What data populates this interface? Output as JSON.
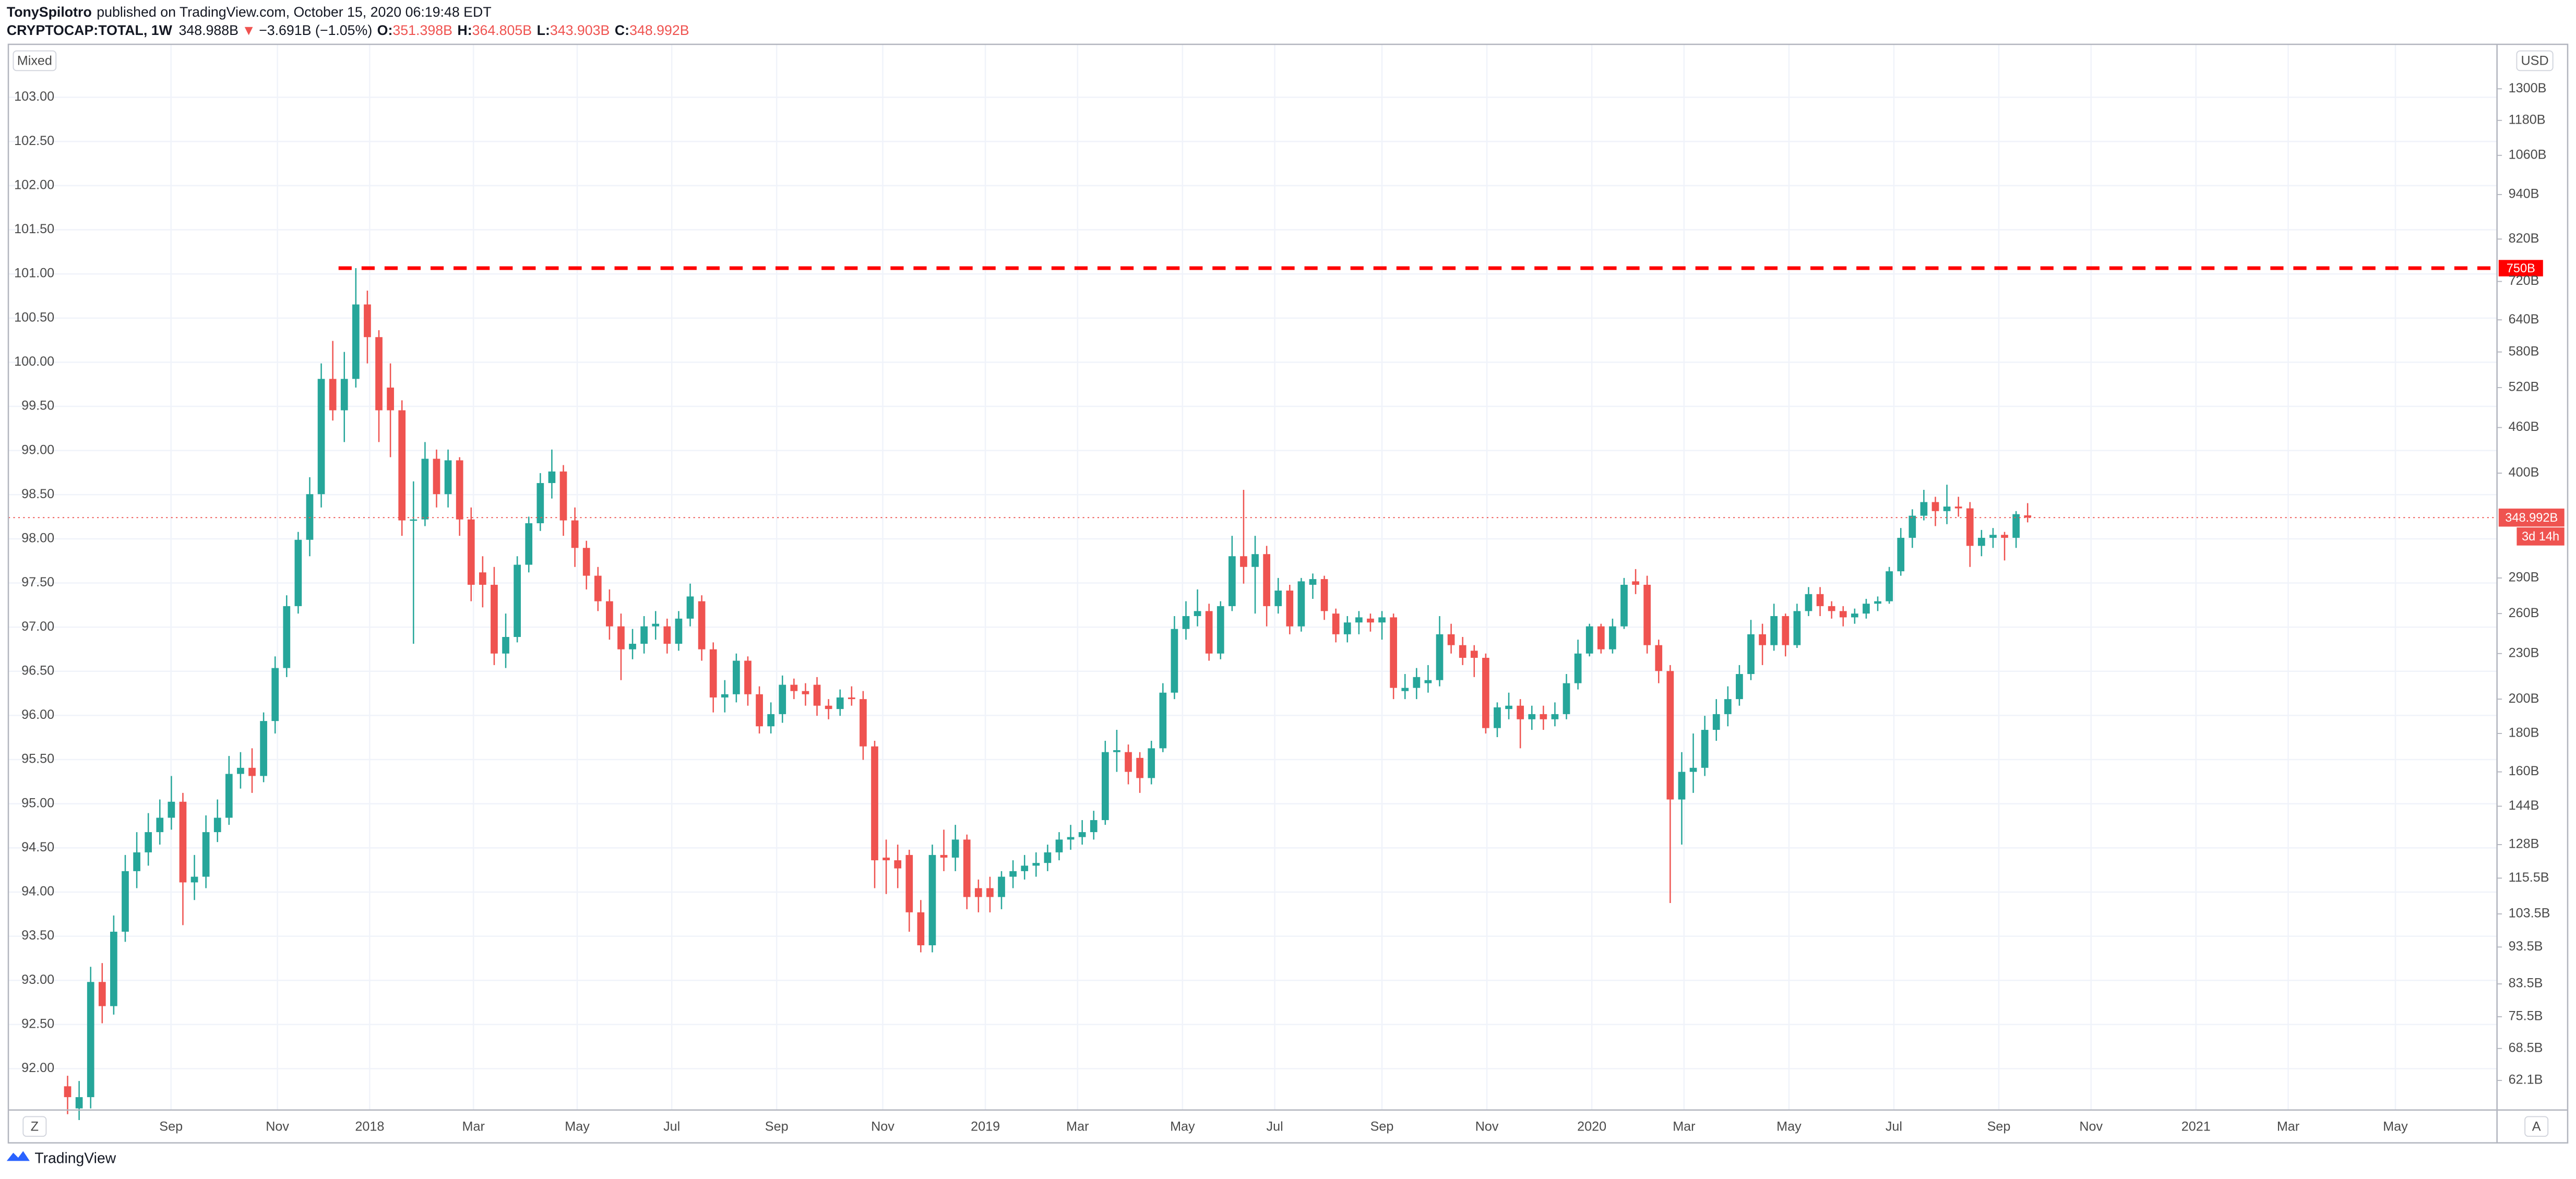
{
  "header": {
    "author": "TonySpilotro",
    "published": "published on TradingView.com, October 15, 2020 06:19:48 EDT",
    "symbol": "CRYPTOCAP:TOTAL, 1W",
    "last": "348.988B",
    "arrow": "▼",
    "change": "−3.691B (−1.05%)",
    "o_label": "O:",
    "o": "351.398B",
    "h_label": "H:",
    "h": "364.805B",
    "l_label": "L:",
    "l": "343.903B",
    "c_label": "C:",
    "c": "348.992B"
  },
  "chart_data": {
    "type": "candlestick",
    "up_color": "#26a69a",
    "down_color": "#ef5350",
    "open": [
      61,
      57,
      59,
      84,
      78,
      98,
      118,
      125,
      133,
      139,
      146,
      114,
      116,
      133,
      139,
      159,
      162,
      158,
      187,
      220,
      266,
      326,
      375,
      534,
      485,
      534,
      671,
      607,
      520,
      485,
      346,
      347,
      418,
      375,
      416,
      347,
      295,
      284,
      230,
      242,
      302,
      343,
      388,
      402,
      346,
      318,
      292,
      270,
      250,
      233,
      237,
      250,
      250,
      237,
      256,
      270,
      233,
      201,
      203,
      225,
      203,
      184,
      191,
      209,
      205,
      209,
      196,
      194,
      201,
      200,
      173,
      123,
      122,
      124,
      104,
      94,
      124,
      123,
      130,
      112,
      112,
      109,
      116,
      118,
      120,
      121,
      125,
      130,
      131,
      133,
      138,
      170,
      170,
      167,
      157,
      172,
      204,
      248,
      258,
      262,
      230,
      266,
      310,
      300,
      312,
      266,
      279,
      250,
      284,
      289,
      260,
      244,
      253,
      256,
      253,
      257,
      205,
      207,
      210,
      212,
      244,
      236,
      232,
      227,
      183,
      194,
      196,
      188,
      191,
      188,
      191,
      210,
      230,
      250,
      233,
      250,
      287,
      284,
      236,
      218,
      147,
      160,
      162,
      182,
      191,
      200,
      216,
      244,
      236,
      258,
      236,
      262,
      276,
      266,
      262,
      257,
      260,
      268,
      270,
      296,
      328,
      351,
      366,
      356,
      361,
      359,
      320,
      328,
      331,
      328,
      351.398
    ],
    "high": [
      63,
      62,
      88,
      89,
      103,
      124,
      133,
      141,
      147,
      158,
      150,
      124,
      140,
      147,
      168,
      170,
      172,
      192,
      228,
      275,
      334,
      395,
      560,
      600,
      580,
      750,
      700,
      620,
      560,
      500,
      390,
      440,
      430,
      430,
      420,
      360,
      310,
      300,
      260,
      310,
      350,
      400,
      430,
      410,
      360,
      325,
      300,
      280,
      260,
      248,
      258,
      262,
      256,
      262,
      285,
      275,
      238,
      212,
      230,
      228,
      208,
      198,
      215,
      213,
      210,
      214,
      200,
      206,
      208,
      205,
      176,
      130,
      128,
      126,
      108,
      128,
      134,
      136,
      132,
      115,
      116,
      118,
      122,
      124,
      125,
      128,
      133,
      136,
      138,
      142,
      176,
      182,
      174,
      170,
      176,
      210,
      258,
      270,
      280,
      268,
      270,
      330,
      380,
      330,
      320,
      290,
      284,
      290,
      294,
      292,
      264,
      258,
      262,
      260,
      262,
      260,
      216,
      220,
      222,
      258,
      252,
      242,
      236,
      230,
      198,
      204,
      200,
      196,
      196,
      198,
      216,
      240,
      252,
      252,
      256,
      290,
      298,
      292,
      240,
      222,
      170,
      180,
      190,
      200,
      208,
      222,
      255,
      252,
      268,
      260,
      268,
      282,
      282,
      270,
      266,
      264,
      272,
      274,
      300,
      338,
      358,
      380,
      372,
      386,
      372,
      366,
      336,
      338,
      334,
      356,
      364.805
    ],
    "low": [
      56,
      55,
      57,
      74,
      76,
      95,
      112,
      120,
      128,
      134,
      100,
      108,
      112,
      129,
      136,
      152,
      150,
      155,
      180,
      214,
      260,
      310,
      360,
      470,
      440,
      520,
      560,
      440,
      420,
      330,
      237,
      340,
      360,
      360,
      330,
      270,
      265,
      222,
      220,
      238,
      295,
      335,
      370,
      330,
      300,
      280,
      262,
      240,
      212,
      226,
      230,
      240,
      230,
      232,
      250,
      225,
      192,
      192,
      198,
      196,
      180,
      180,
      186,
      200,
      196,
      190,
      188,
      190,
      196,
      166,
      112,
      110,
      112,
      98,
      92,
      92,
      118,
      118,
      105,
      104,
      104,
      105,
      112,
      115,
      116,
      118,
      122,
      126,
      128,
      130,
      136,
      160,
      154,
      150,
      154,
      170,
      200,
      240,
      250,
      225,
      226,
      262,
      285,
      260,
      250,
      260,
      244,
      246,
      272,
      255,
      238,
      238,
      244,
      246,
      240,
      200,
      200,
      200,
      204,
      208,
      230,
      222,
      214,
      180,
      178,
      188,
      172,
      182,
      182,
      184,
      188,
      206,
      228,
      230,
      230,
      248,
      276,
      230,
      210,
      107,
      128,
      150,
      158,
      176,
      184,
      196,
      212,
      222,
      232,
      228,
      234,
      258,
      258,
      256,
      250,
      252,
      256,
      262,
      268,
      292,
      318,
      346,
      340,
      342,
      350,
      300,
      310,
      318,
      306,
      318,
      343.903
    ],
    "close": [
      59,
      59,
      84,
      78,
      98,
      118,
      125,
      133,
      139,
      146,
      114,
      116,
      133,
      139,
      159,
      162,
      158,
      187,
      220,
      266,
      326,
      375,
      534,
      485,
      534,
      671,
      607,
      485,
      485,
      346,
      347,
      418,
      375,
      416,
      347,
      284,
      284,
      230,
      242,
      302,
      343,
      388,
      402,
      346,
      318,
      292,
      270,
      250,
      233,
      237,
      250,
      252,
      237,
      256,
      274,
      233,
      201,
      203,
      225,
      203,
      184,
      191,
      209,
      205,
      203,
      196,
      194,
      201,
      200,
      173,
      122,
      122,
      119,
      104,
      94,
      124,
      123,
      130,
      109,
      109,
      109,
      116,
      118,
      120,
      121,
      125,
      130,
      131,
      133,
      138,
      170,
      171,
      160,
      157,
      172,
      204,
      248,
      258,
      262,
      230,
      266,
      310,
      300,
      312,
      266,
      279,
      250,
      287,
      289,
      262,
      244,
      253,
      257,
      253,
      257,
      207,
      207,
      214,
      212,
      244,
      236,
      227,
      227,
      183,
      195,
      196,
      188,
      191,
      188,
      191,
      210,
      230,
      250,
      233,
      250,
      284,
      284,
      236,
      218,
      147,
      160,
      162,
      182,
      191,
      200,
      216,
      244,
      236,
      258,
      236,
      262,
      276,
      266,
      262,
      257,
      260,
      268,
      270,
      296,
      328,
      351,
      366,
      356,
      361,
      359,
      320,
      328,
      331,
      328,
      352.679,
      348.992
    ],
    "ylim": [
      57,
      1490
    ],
    "log_scale": true,
    "yticks": [
      {
        "value": 62.1,
        "label": "62.1B"
      },
      {
        "value": 68.5,
        "label": "68.5B"
      },
      {
        "value": 75.5,
        "label": "75.5B"
      },
      {
        "value": 83.5,
        "label": "83.5B"
      },
      {
        "value": 93.5,
        "label": "93.5B"
      },
      {
        "value": 103.5,
        "label": "103.5B"
      },
      {
        "value": 115.5,
        "label": "115.5B"
      },
      {
        "value": 128,
        "label": "128B"
      },
      {
        "value": 144,
        "label": "144B"
      },
      {
        "value": 160,
        "label": "160B"
      },
      {
        "value": 180,
        "label": "180B"
      },
      {
        "value": 200,
        "label": "200B"
      },
      {
        "value": 230,
        "label": "230B"
      },
      {
        "value": 260,
        "label": "260B"
      },
      {
        "value": 290,
        "label": "290B"
      },
      {
        "value": 400,
        "label": "400B"
      },
      {
        "value": 460,
        "label": "460B"
      },
      {
        "value": 520,
        "label": "520B"
      },
      {
        "value": 580,
        "label": "580B"
      },
      {
        "value": 640,
        "label": "640B"
      },
      {
        "value": 720,
        "label": "720B"
      },
      {
        "value": 820,
        "label": "820B"
      },
      {
        "value": 940,
        "label": "940B"
      },
      {
        "value": 1060,
        "label": "1060B"
      },
      {
        "value": 1180,
        "label": "1180B"
      },
      {
        "value": 1300,
        "label": "1300B"
      }
    ],
    "y_label": "USD",
    "y2lim": [
      91.55,
      103.6
    ],
    "y2ticks": [
      {
        "value": 92,
        "label": "92.00"
      },
      {
        "value": 92.5,
        "label": "92.50"
      },
      {
        "value": 93,
        "label": "93.00"
      },
      {
        "value": 93.5,
        "label": "93.50"
      },
      {
        "value": 94,
        "label": "94.00"
      },
      {
        "value": 94.5,
        "label": "94.50"
      },
      {
        "value": 95,
        "label": "95.00"
      },
      {
        "value": 95.5,
        "label": "95.50"
      },
      {
        "value": 96,
        "label": "96.00"
      },
      {
        "value": 96.5,
        "label": "96.50"
      },
      {
        "value": 97,
        "label": "97.00"
      },
      {
        "value": 97.5,
        "label": "97.50"
      },
      {
        "value": 98,
        "label": "98.00"
      },
      {
        "value": 98.5,
        "label": "98.50"
      },
      {
        "value": 99,
        "label": "99.00"
      },
      {
        "value": 99.5,
        "label": "99.50"
      },
      {
        "value": 100,
        "label": "100.00"
      },
      {
        "value": 100.5,
        "label": "100.50"
      },
      {
        "value": 101,
        "label": "101.00"
      },
      {
        "value": 101.5,
        "label": "101.50"
      },
      {
        "value": 102,
        "label": "102.00"
      },
      {
        "value": 102.5,
        "label": "102.50"
      },
      {
        "value": 103,
        "label": "103.00"
      }
    ],
    "y2_label": "Mixed",
    "xlim": [
      -1.15,
      210
    ],
    "xticks": [
      {
        "value": 8.97,
        "label": "Sep"
      },
      {
        "value": 18.2,
        "label": "Nov"
      },
      {
        "value": 26.2,
        "label": "2018"
      },
      {
        "value": 35.2,
        "label": "Mar"
      },
      {
        "value": 44.2,
        "label": "May"
      },
      {
        "value": 52.4,
        "label": "Jul"
      },
      {
        "value": 61.5,
        "label": "Sep"
      },
      {
        "value": 70.7,
        "label": "Nov"
      },
      {
        "value": 79.6,
        "label": "2019"
      },
      {
        "value": 87.6,
        "label": "Mar"
      },
      {
        "value": 96.7,
        "label": "May"
      },
      {
        "value": 104.7,
        "label": "Jul"
      },
      {
        "value": 114,
        "label": "Sep"
      },
      {
        "value": 123.1,
        "label": "Nov"
      },
      {
        "value": 132.2,
        "label": "2020"
      },
      {
        "value": 140.2,
        "label": "Mar"
      },
      {
        "value": 149.3,
        "label": "May"
      },
      {
        "value": 158.4,
        "label": "Jul"
      },
      {
        "value": 167.5,
        "label": "Sep"
      },
      {
        "value": 175.5,
        "label": "Nov"
      },
      {
        "value": 184.6,
        "label": "2021"
      },
      {
        "value": 192.6,
        "label": "Mar"
      },
      {
        "value": 201.9,
        "label": "May"
      }
    ],
    "grid": true,
    "hline": {
      "value": 750,
      "label": "750B",
      "color": "#ff0000"
    },
    "price_line": {
      "label": "348.992B",
      "countdown": "3d 14h"
    }
  },
  "footer": {
    "brand": "TradingView",
    "left_button": "Z",
    "right_button": "A"
  }
}
